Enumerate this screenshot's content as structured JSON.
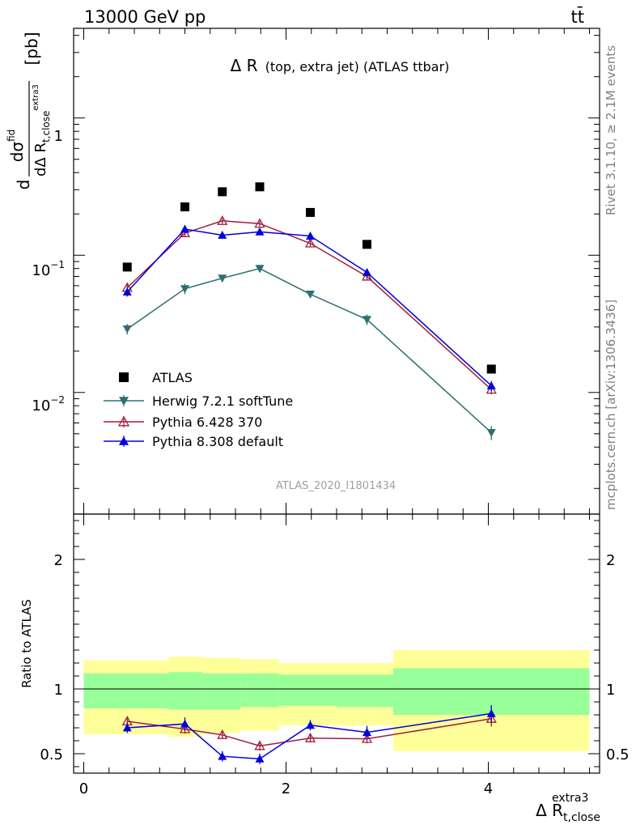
{
  "header": {
    "energy_label": "13000 GeV pp",
    "process_label": "tt̄"
  },
  "side_labels": {
    "rivet": "Rivet 3.1.10, ≥ 2.1M events",
    "mcplots": "mcplots.cern.ch [arXiv:1306.3436]"
  },
  "chart_data": [
    {
      "type": "scatter",
      "title_main": "Δ R",
      "title_sub": "(top, extra jet) (ATLAS ttbar)",
      "watermark": "ATLAS_2020_I1801434",
      "ylabel": {
        "d1": "d",
        "numer": "dσ",
        "numer_sup": "fid",
        "denom": "dΔ R",
        "denom_sub": "t,close",
        "denom_sup": "extra3",
        "unit": "[pb]"
      },
      "yscale": "log",
      "ylim": [
        0.0013,
        4.5
      ],
      "xlim": [
        -0.1,
        5.1
      ],
      "y_tick_labels": {
        "t1": {
          "base": "1",
          "exp": ""
        },
        "t01": {
          "base": "10",
          "exp": "−1"
        },
        "t001": {
          "base": "10",
          "exp": "−2"
        }
      },
      "legend_position": "lower-left",
      "series": [
        {
          "name": "ATLAS",
          "marker": "square",
          "color": "#000000",
          "x": [
            0.43,
            1.0,
            1.37,
            1.74,
            2.24,
            2.8,
            4.03
          ],
          "y": [
            0.082,
            0.225,
            0.29,
            0.315,
            0.205,
            0.12,
            0.0148
          ]
        },
        {
          "name": "Herwig 7.2.1 softTune",
          "marker": "triangle-down",
          "color": "#2e6e70",
          "x": [
            0.43,
            1.0,
            1.37,
            1.74,
            2.24,
            2.8,
            4.03
          ],
          "y": [
            0.029,
            0.057,
            0.068,
            0.08,
            0.052,
            0.034,
            0.0051
          ],
          "err": [
            0.0025,
            0.005,
            0.004,
            0.005,
            0.003,
            0.003,
            0.0006
          ]
        },
        {
          "name": "Pythia 6.428 370",
          "marker": "triangle-open",
          "color": "#a01e3c",
          "x": [
            0.43,
            1.0,
            1.37,
            1.74,
            2.24,
            2.8,
            4.03
          ],
          "y": [
            0.058,
            0.145,
            0.178,
            0.17,
            0.122,
            0.07,
            0.0105
          ],
          "err": [
            0.004,
            0.008,
            0.008,
            0.008,
            0.006,
            0.004,
            0.0008
          ]
        },
        {
          "name": "Pythia 8.308 default",
          "marker": "triangle-up",
          "color": "#0000dd",
          "x": [
            0.43,
            1.0,
            1.37,
            1.74,
            2.24,
            2.8,
            4.03
          ],
          "y": [
            0.054,
            0.155,
            0.14,
            0.148,
            0.138,
            0.075,
            0.0112
          ],
          "err": [
            0.004,
            0.009,
            0.008,
            0.008,
            0.007,
            0.005,
            0.0009
          ]
        }
      ]
    },
    {
      "type": "scatter",
      "ylabel": "Ratio to ATLAS",
      "xlabel_main": "Δ R",
      "xlabel_sub": "t,close",
      "xlabel_sup": "extra3",
      "ylim": [
        0.35,
        2.35
      ],
      "xlim": [
        -0.1,
        5.1
      ],
      "x_ticks": [
        0,
        2,
        4
      ],
      "y_ticks": [
        0.5,
        1,
        2
      ],
      "reference_line": 1,
      "bands": [
        {
          "x0": 0.0,
          "x1": 0.84,
          "green_lo": 0.85,
          "green_hi": 1.12,
          "yellow_lo": 0.65,
          "yellow_hi": 1.22
        },
        {
          "x0": 0.84,
          "x1": 1.17,
          "green_lo": 0.84,
          "green_hi": 1.13,
          "yellow_lo": 0.63,
          "yellow_hi": 1.25
        },
        {
          "x0": 1.17,
          "x1": 1.55,
          "green_lo": 0.84,
          "green_hi": 1.12,
          "yellow_lo": 0.66,
          "yellow_hi": 1.24
        },
        {
          "x0": 1.55,
          "x1": 1.93,
          "green_lo": 0.86,
          "green_hi": 1.12,
          "yellow_lo": 0.68,
          "yellow_hi": 1.23
        },
        {
          "x0": 1.93,
          "x1": 2.5,
          "green_lo": 0.87,
          "green_hi": 1.11,
          "yellow_lo": 0.72,
          "yellow_hi": 1.2
        },
        {
          "x0": 2.5,
          "x1": 3.06,
          "green_lo": 0.86,
          "green_hi": 1.11,
          "yellow_lo": 0.72,
          "yellow_hi": 1.2
        },
        {
          "x0": 3.06,
          "x1": 5.0,
          "green_lo": 0.8,
          "green_hi": 1.16,
          "yellow_lo": 0.52,
          "yellow_hi": 1.3
        }
      ],
      "series": [
        {
          "name": "Pythia 6.428 370",
          "marker": "triangle-open",
          "color": "#a01e3c",
          "x": [
            0.43,
            1.0,
            1.37,
            1.74,
            2.24,
            2.8,
            4.03
          ],
          "y": [
            0.75,
            0.69,
            0.645,
            0.56,
            0.62,
            0.615,
            0.77
          ],
          "err": [
            0.035,
            0.035,
            0.03,
            0.035,
            0.03,
            0.035,
            0.06
          ]
        },
        {
          "name": "Pythia 8.308 default",
          "marker": "triangle-up",
          "color": "#0000dd",
          "x": [
            0.43,
            1.0,
            1.37,
            1.74,
            2.24,
            2.8,
            4.03
          ],
          "y": [
            0.7,
            0.73,
            0.48,
            0.46,
            0.72,
            0.665,
            0.81
          ],
          "err": [
            0.04,
            0.05,
            0.04,
            0.04,
            0.04,
            0.05,
            0.065
          ]
        }
      ]
    }
  ]
}
